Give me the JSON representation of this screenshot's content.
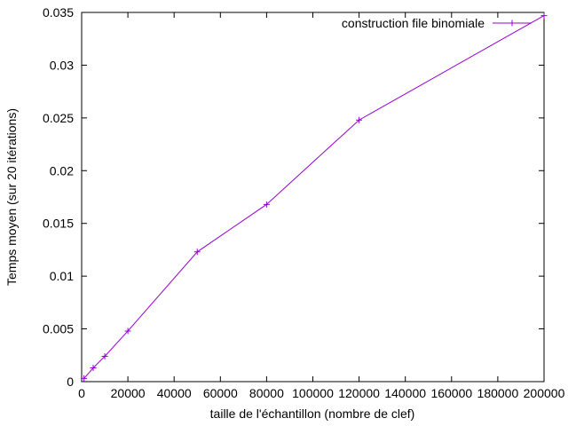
{
  "chart_data": {
    "type": "line",
    "title": "",
    "xlabel": "taille de l'échantillon (nombre de clef)",
    "ylabel": "Temps moyen (sur 20 itérations)",
    "xlim": [
      0,
      200000
    ],
    "ylim": [
      0,
      0.035
    ],
    "x_ticks": [
      0,
      20000,
      40000,
      60000,
      80000,
      100000,
      120000,
      140000,
      160000,
      180000,
      200000
    ],
    "x_tick_labels": [
      "0",
      "20000",
      "40000",
      "60000",
      "80000",
      "100000",
      "120000",
      "140000",
      "160000",
      "180000",
      "200000"
    ],
    "y_ticks": [
      0,
      0.005,
      0.01,
      0.015,
      0.02,
      0.025,
      0.03,
      0.035
    ],
    "y_tick_labels": [
      "0",
      "0.005",
      "0.01",
      "0.015",
      "0.02",
      "0.025",
      "0.03",
      "0.035"
    ],
    "grid": false,
    "legend_position": "top-right",
    "series": [
      {
        "name": "construction file binomiale",
        "color": "#9400d3",
        "marker": "plus",
        "x": [
          1000,
          5000,
          10000,
          20000,
          50000,
          80000,
          120000,
          200000
        ],
        "y": [
          0.0003,
          0.0013,
          0.0024,
          0.0048,
          0.0123,
          0.0168,
          0.0248,
          0.0347
        ]
      }
    ]
  }
}
